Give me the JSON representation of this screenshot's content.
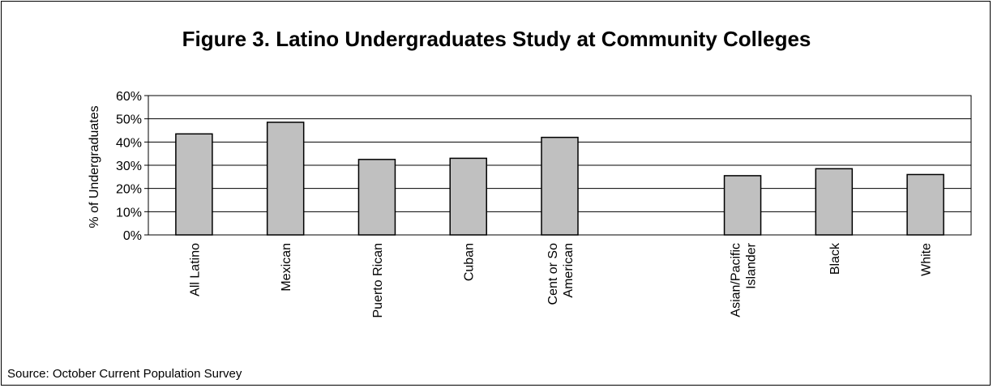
{
  "chart_data": {
    "type": "bar",
    "title": "Figure 3. Latino Undergraduates Study at Community Colleges",
    "xlabel": "",
    "ylabel": "% of Undergraduates",
    "ylim": [
      0,
      60
    ],
    "yticks": [
      "0%",
      "10%",
      "20%",
      "30%",
      "40%",
      "50%",
      "60%"
    ],
    "grid": true,
    "categories": [
      [
        "All Latino"
      ],
      [
        "Mexican"
      ],
      [
        "Puerto Rican"
      ],
      [
        "Cuban"
      ],
      [
        "Cent or So",
        "American"
      ],
      [
        "Asian/Pacific",
        "Islander"
      ],
      [
        "Black"
      ],
      [
        "White"
      ]
    ],
    "values": [
      43.5,
      48.5,
      32.5,
      33,
      42,
      25.5,
      28.5,
      26
    ],
    "colors": {
      "bar": "#c0c0c0",
      "bar_edge": "#000000",
      "grid": "#000000"
    }
  },
  "source": "Source: October Current Population Survey"
}
